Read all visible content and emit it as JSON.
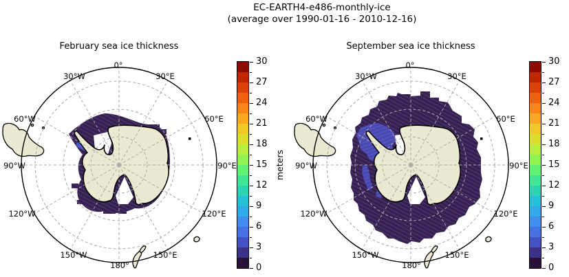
{
  "figure": {
    "title_line1": "EC-EARTH4-e486-monthly-ice",
    "title_line2": "(average over 1990-01-16 - 2010-12-16)"
  },
  "panels": [
    {
      "title": "February sea ice thickness"
    },
    {
      "title": "September sea ice thickness"
    }
  ],
  "graticule_labels": [
    "0°",
    "30°E",
    "60°E",
    "90°E",
    "120°E",
    "150°E",
    "180°",
    "150°W",
    "120°W",
    "90°W",
    "60°W",
    "30°W"
  ],
  "colorbar": {
    "label": "meters",
    "tick_labels": [
      "30",
      "27",
      "24",
      "21",
      "18",
      "15",
      "12",
      "9",
      "6",
      "3",
      "0"
    ],
    "min": 0,
    "max": 30,
    "major_step": 3,
    "minor_step": 1.5,
    "band_colors": [
      "#2A1138",
      "#3B3388",
      "#4353C2",
      "#4672E2",
      "#418FEC",
      "#2FABE8",
      "#24C2D8",
      "#2BD5B4",
      "#3FE794",
      "#62F172",
      "#8FF452",
      "#B9EE3C",
      "#DBDE2D",
      "#F0C827",
      "#FAA81E",
      "#FB8516",
      "#F26110",
      "#DE4007",
      "#C02602",
      "#8E0B02"
    ]
  },
  "colors": {
    "background": "#ffffff",
    "ocean": "#ffffff",
    "land": "#ECE9D2",
    "coastline": "#000000",
    "ice_thin": "#362051",
    "ice_thin_texture": "#4C3A6E",
    "ice_thick_blue": "#4A49B2",
    "ice_thick_blue_texture": "#5B5AC4",
    "ice_streak_blue": "#4A5AC8",
    "graticule": "#A8A8A8",
    "map_boundary": "#000000",
    "text": "#000000"
  },
  "chart_data": [
    {
      "type": "heatmap",
      "title": "February sea ice thickness",
      "subtitle": "EC-EARTH4-e486-monthly-ice (average over 1990-01-16 - 2010-12-16)",
      "projection": "south polar stereographic, South Pole centered, 0° longitude at top",
      "units": "meters",
      "colorbar_range": [
        0,
        30
      ],
      "colorbar_ticks": [
        0,
        3,
        6,
        9,
        12,
        15,
        18,
        21,
        24,
        27,
        30
      ],
      "discrete_level_step": 1.5,
      "longitude_gridline_step_deg": 30,
      "longitude_labels": [
        "0°",
        "30°E",
        "60°E",
        "90°E",
        "120°E",
        "150°E",
        "180°",
        "150°W",
        "120°W",
        "90°W",
        "60°W",
        "30°W"
      ],
      "legend_position": "right colorbar",
      "grid": "dashed graticule circles and meridians",
      "values_summary": [
        {
          "region": "narrow coastal band around Antarctica, widest in Weddell and Ross Sea sectors",
          "thickness_m": "0-1.5"
        },
        {
          "region": "thin streak along east side of Antarctic Peninsula (Larsen / western Weddell)",
          "thickness_m": "3-6"
        },
        {
          "region": "open Southern Ocean elsewhere",
          "thickness_m": "ice free"
        }
      ]
    },
    {
      "type": "heatmap",
      "title": "September sea ice thickness",
      "subtitle": "EC-EARTH4-e486-monthly-ice (average over 1990-01-16 - 2010-12-16)",
      "projection": "south polar stereographic, South Pole centered, 0° longitude at top",
      "units": "meters",
      "colorbar_range": [
        0,
        30
      ],
      "colorbar_ticks": [
        0,
        3,
        6,
        9,
        12,
        15,
        18,
        21,
        24,
        27,
        30
      ],
      "discrete_level_step": 1.5,
      "longitude_gridline_step_deg": 30,
      "longitude_labels": [
        "0°",
        "30°E",
        "60°E",
        "90°E",
        "120°E",
        "150°E",
        "180°",
        "150°W",
        "120°W",
        "90°W",
        "60°W",
        "30°W"
      ],
      "legend_position": "right colorbar",
      "grid": "dashed graticule circles and meridians",
      "values_summary": [
        {
          "region": "broad ring surrounding Antarctica out to roughly 60°S",
          "thickness_m": "0-1.5"
        },
        {
          "region": "western Weddell Sea patch",
          "thickness_m": "3-7.5"
        },
        {
          "region": "strips along west Antarctic Peninsula and Amundsen coast",
          "thickness_m": "3-6"
        }
      ]
    }
  ]
}
